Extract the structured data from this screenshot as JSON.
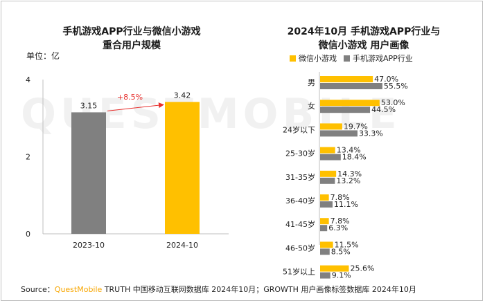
{
  "left_chart": {
    "title_line1": "手机游戏APP行业与微信小游戏",
    "title_line2": "重合用户规模",
    "unit": "单位：亿",
    "growth_label": "+8.5%",
    "colors": {
      "gray": "#808080",
      "yellow": "#ffc000",
      "arrow": "#e8312f"
    }
  },
  "right_chart": {
    "title_line1": "2024年10月 手机游戏APP行业与",
    "title_line2": "微信小游戏 用户画像",
    "colors": {
      "yellow": "#ffc000",
      "gray": "#808080"
    }
  },
  "chart_data": [
    {
      "type": "bar",
      "title": "手机游戏APP行业与微信小游戏 重合用户规模",
      "ylabel": "单位：亿",
      "categories": [
        "2023-10",
        "2024-10"
      ],
      "values": [
        3.15,
        3.42
      ],
      "value_labels": [
        "3.15",
        "3.42"
      ],
      "ylim": [
        0,
        4
      ],
      "yticks": [
        "0",
        "2",
        "4"
      ],
      "annotation": "+8.5%"
    },
    {
      "type": "bar",
      "orientation": "horizontal",
      "title": "2024年10月 手机游戏APP行业与 微信小游戏 用户画像",
      "categories": [
        "男",
        "女",
        "24岁以下",
        "25-30岁",
        "31-35岁",
        "36-40岁",
        "41-45岁",
        "46-50岁",
        "51岁以上"
      ],
      "series": [
        {
          "name": "微信小游戏",
          "values": [
            47.0,
            53.0,
            19.7,
            13.4,
            14.3,
            7.8,
            7.8,
            11.5,
            25.6
          ],
          "labels": [
            "47.0%",
            "53.0%",
            "19.7%",
            "13.4%",
            "14.3%",
            "7.8%",
            "7.8%",
            "11.5%",
            "25.6%"
          ]
        },
        {
          "name": "手机游戏APP行业",
          "values": [
            55.5,
            44.5,
            33.3,
            18.4,
            13.2,
            11.1,
            6.3,
            8.5,
            9.1
          ],
          "labels": [
            "55.5%",
            "44.5%",
            "33.3%",
            "18.4%",
            "13.2%",
            "11.1%",
            "6.3%",
            "8.5%",
            "9.1%"
          ]
        }
      ],
      "legend": "top"
    }
  ],
  "watermark": "QUESTMOBILE",
  "source": {
    "prefix": "Source：",
    "brand": "QuestMobile",
    "rest": " TRUTH 中国移动互联网数据库 2024年10月；GROWTH 用户画像标签数据库 2024年10月"
  }
}
